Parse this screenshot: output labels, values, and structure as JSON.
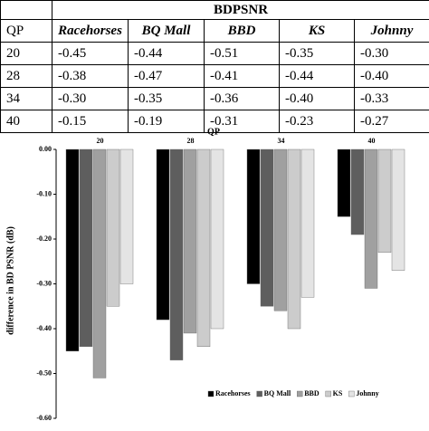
{
  "table": {
    "title": "BDPSNR",
    "header": [
      "QP",
      "Racehorses",
      "BQ Mall",
      "BBD",
      "KS",
      "Johnny"
    ],
    "rows": [
      [
        "20",
        "-0.45",
        "-0.44",
        "-0.51",
        "-0.35",
        "-0.30"
      ],
      [
        "28",
        "-0.38",
        "-0.47",
        "-0.41",
        "-0.44",
        "-0.40"
      ],
      [
        "34",
        "-0.30",
        "-0.35",
        "-0.36",
        "-0.40",
        "-0.33"
      ],
      [
        "40",
        "-0.15",
        "-0.19",
        "-0.31",
        "-0.23",
        "-0.27"
      ]
    ]
  },
  "chart_data": {
    "type": "bar",
    "x_label": "QP",
    "y_label": "difference in BD PSNR (dB)",
    "categories": [
      "20",
      "28",
      "34",
      "40"
    ],
    "series": [
      {
        "name": "Racehorses",
        "color": "#000000",
        "values": [
          -0.45,
          -0.38,
          -0.3,
          -0.15
        ]
      },
      {
        "name": "BQ Mall",
        "color": "#5e5e5e",
        "values": [
          -0.44,
          -0.47,
          -0.35,
          -0.19
        ]
      },
      {
        "name": "BBD",
        "color": "#a0a0a0",
        "values": [
          -0.51,
          -0.41,
          -0.36,
          -0.31
        ]
      },
      {
        "name": "KS",
        "color": "#cccccc",
        "values": [
          -0.35,
          -0.44,
          -0.4,
          -0.23
        ]
      },
      {
        "name": "Johnny",
        "color": "#e4e4e4",
        "values": [
          -0.3,
          -0.4,
          -0.33,
          -0.27
        ]
      }
    ],
    "ylim": [
      -0.6,
      0
    ],
    "yticks": [
      {
        "value": 0,
        "label": "0.00"
      },
      {
        "value": -0.1,
        "label": "-0.10"
      },
      {
        "value": -0.2,
        "label": "-0.20"
      },
      {
        "value": -0.3,
        "label": "-0.30"
      },
      {
        "value": -0.4,
        "label": "-0.40"
      },
      {
        "value": -0.5,
        "label": "-0.50"
      },
      {
        "value": -0.6,
        "label": "-0.60"
      }
    ],
    "legend": "bottom-right"
  }
}
